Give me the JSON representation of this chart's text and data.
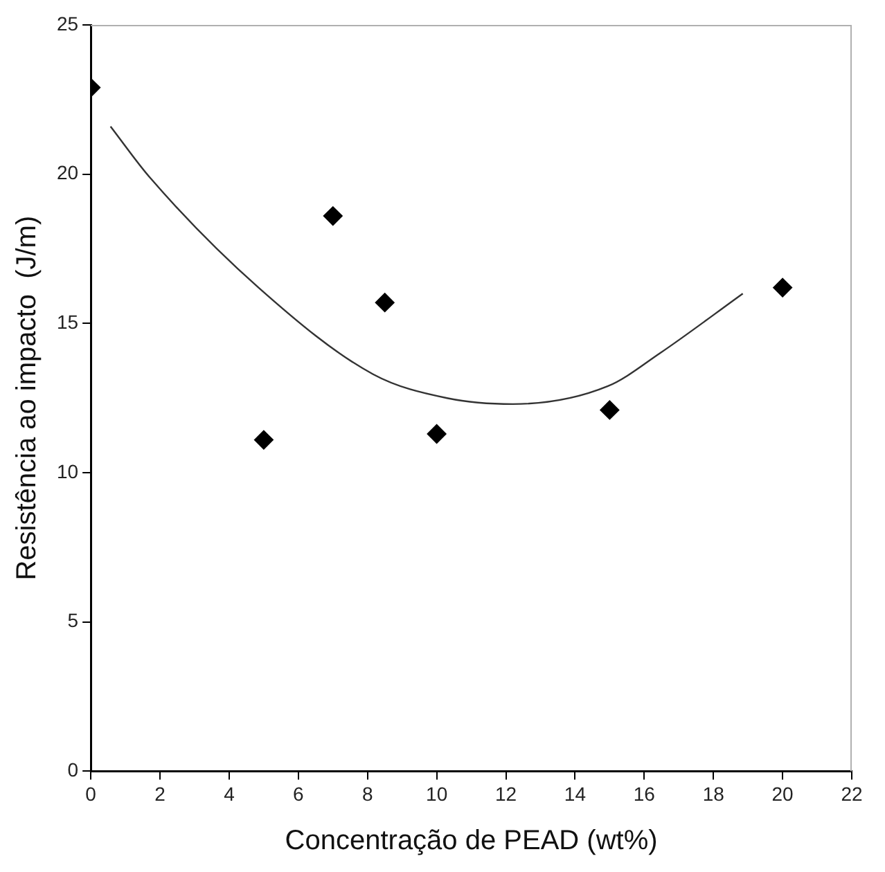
{
  "chart_data": {
    "type": "scatter",
    "xlabel": "Concentração de PEAD (wt%)",
    "ylabel": "Resistência ao impacto  (J/m)",
    "xlim": [
      0,
      22
    ],
    "xticks": [
      0,
      2,
      4,
      6,
      8,
      10,
      12,
      14,
      16,
      18,
      20,
      22
    ],
    "ylim": [
      0,
      25
    ],
    "yticks": [
      0,
      5,
      10,
      15,
      20,
      25
    ],
    "grid": false,
    "legend": false,
    "series": [
      {
        "color": "#000000",
        "marker": "diamond",
        "x": [
          0,
          5,
          7,
          8.5,
          10,
          15,
          20
        ],
        "values": [
          22.9,
          11.1,
          18.6,
          15.7,
          11.3,
          12.1,
          16.2
        ]
      },
      {
        "type": "line",
        "color": "#333333",
        "marker": "none",
        "line_style": "solid",
        "x": [
          0.57,
          1.7,
          4.85,
          8.16,
          10.3,
          12.2,
          14.95,
          16.45,
          18.85
        ],
        "values": [
          21.6,
          19.9,
          16.2,
          13.3,
          12.5,
          12.3,
          12.9,
          14.0,
          16.0
        ]
      }
    ]
  }
}
